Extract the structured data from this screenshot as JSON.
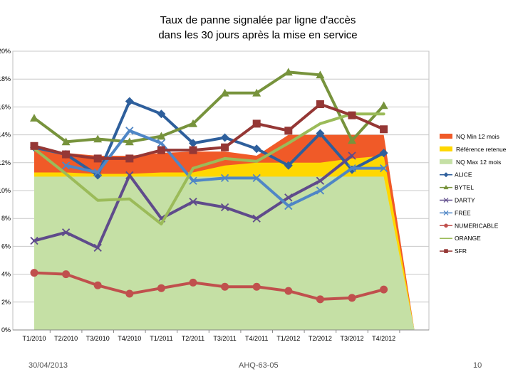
{
  "chart_data": {
    "type": "line",
    "title_lines": [
      "Taux de panne signalée par ligne d'accès",
      "dans les 30 jours après la mise en service"
    ],
    "categories": [
      "T1/2010",
      "T2/2010",
      "T3/2010",
      "T4/2010",
      "T1/2011",
      "T2/2011",
      "T3/2011",
      "T4/2011",
      "T1/2012",
      "T2/2012",
      "T3/2012",
      "T4/2012"
    ],
    "ylim": [
      0,
      20
    ],
    "yticks": [
      0,
      2,
      4,
      6,
      8,
      10,
      12,
      14,
      16,
      18,
      20
    ],
    "ytick_labels": [
      "0%",
      "2%",
      "4%",
      "6%",
      "8%",
      "10%",
      "12%",
      "14%",
      "16%",
      "18%",
      "20%"
    ],
    "bands": [
      {
        "name": "NQ Min 12 mois",
        "color": "#f05a28",
        "values": [
          13.1,
          12.7,
          12.5,
          12.5,
          12.7,
          12.8,
          12.8,
          12.5,
          14.0,
          14.0,
          14.0,
          14.0
        ]
      },
      {
        "name": "Référence retenue",
        "color": "#ffd700",
        "values": [
          11.3,
          11.3,
          11.2,
          11.2,
          11.3,
          11.3,
          11.8,
          12.0,
          12.0,
          12.0,
          12.3,
          12.5
        ]
      },
      {
        "name": "NQ Max 12 mois",
        "color": "#c5e0a5",
        "values": [
          11.0,
          11.0,
          11.0,
          11.0,
          11.0,
          11.0,
          11.0,
          11.0,
          11.0,
          11.0,
          11.0,
          11.0
        ]
      }
    ],
    "series": [
      {
        "name": "ALICE",
        "color": "#2e5f9c",
        "marker": "diamond",
        "values": [
          13.1,
          12.6,
          11.1,
          16.4,
          15.5,
          13.4,
          13.8,
          13.0,
          11.8,
          14.1,
          11.5,
          12.7
        ]
      },
      {
        "name": "BYTEL",
        "color": "#77933c",
        "marker": "triangle",
        "values": [
          15.2,
          13.5,
          13.7,
          13.5,
          13.9,
          14.8,
          17.0,
          17.0,
          18.5,
          18.3,
          13.6,
          16.1
        ]
      },
      {
        "name": "DARTY",
        "color": "#5f4b8b",
        "marker": "x",
        "values": [
          6.4,
          7.0,
          5.9,
          11.1,
          8.0,
          9.2,
          8.8,
          8.0,
          9.5,
          10.7,
          12.5,
          null
        ]
      },
      {
        "name": "FREE",
        "color": "#4f86c6",
        "marker": "x",
        "values": [
          null,
          11.8,
          11.3,
          14.3,
          13.4,
          10.7,
          10.9,
          10.9,
          8.9,
          10.0,
          11.6,
          11.6
        ]
      },
      {
        "name": "NUMERICABLE",
        "color": "#c0504d",
        "marker": "circle",
        "values": [
          4.1,
          4.0,
          3.2,
          2.6,
          3.0,
          3.4,
          3.1,
          3.1,
          2.8,
          2.2,
          2.3,
          2.9
        ]
      },
      {
        "name": "ORANGE",
        "color": "#9bbb59",
        "marker": "none",
        "values": [
          13.0,
          11.2,
          9.3,
          9.4,
          7.6,
          11.6,
          12.3,
          12.1,
          13.4,
          14.8,
          15.5,
          15.5
        ]
      },
      {
        "name": "SFR",
        "color": "#953735",
        "marker": "square",
        "values": [
          13.2,
          12.6,
          12.3,
          12.3,
          12.9,
          12.9,
          13.1,
          14.8,
          14.3,
          16.2,
          15.4,
          14.4
        ]
      }
    ]
  },
  "footer": {
    "date": "30/04/2013",
    "reference": "AHQ-63-05",
    "page_number": "10"
  }
}
